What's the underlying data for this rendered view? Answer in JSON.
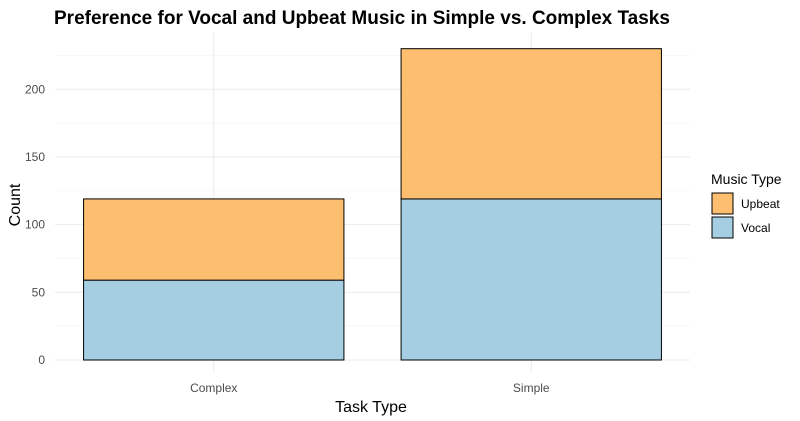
{
  "chart_data": {
    "type": "bar",
    "stacked": true,
    "title": "Preference for Vocal and Upbeat Music in Simple vs. Complex Tasks",
    "xlabel": "Task Type",
    "ylabel": "Count",
    "categories": [
      "Complex",
      "Simple"
    ],
    "series": [
      {
        "name": "Vocal",
        "values": [
          59,
          119
        ],
        "color": "#a6cee3"
      },
      {
        "name": "Upbeat",
        "values": [
          60,
          111
        ],
        "color": "#fdbf6f"
      }
    ],
    "ylim": [
      0,
      236
    ],
    "yticks": [
      0,
      50,
      100,
      150,
      200
    ],
    "grid": true,
    "legend": {
      "title": "Music Type",
      "position": "right",
      "order": [
        "Upbeat",
        "Vocal"
      ]
    }
  }
}
